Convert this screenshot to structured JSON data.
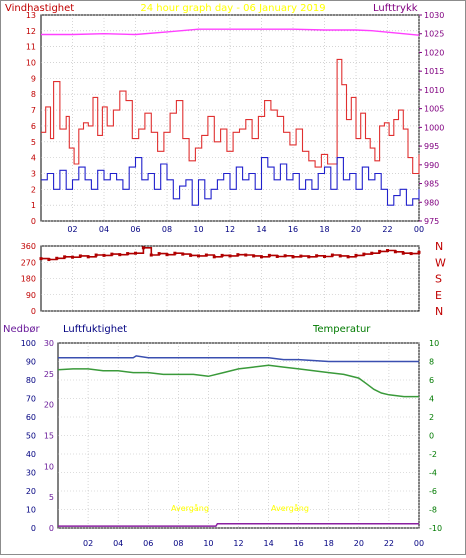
{
  "header": {
    "title": "24 hour graph day - 06 January 2019",
    "title_color": "#ffff00"
  },
  "chart_data": [
    {
      "type": "line",
      "panel": "wind-pressure",
      "ylabel_left": "Vindhastighet",
      "ylabel_right": "Lufttrykk",
      "ylim_left": [
        0,
        13
      ],
      "ylim_right": [
        975,
        1030
      ],
      "xlim": [
        0,
        24
      ],
      "x_tick_labels": [
        "02",
        "04",
        "06",
        "08",
        "10",
        "12",
        "14",
        "16",
        "18",
        "20",
        "22",
        "00"
      ],
      "y_left_tick_labels": [
        "0",
        "1",
        "2",
        "3",
        "4",
        "5",
        "6",
        "7",
        "8",
        "9",
        "10",
        "11",
        "12",
        "13"
      ],
      "y_right_tick_labels": [
        "975",
        "980",
        "985",
        "990",
        "995",
        "1000",
        "1005",
        "1010",
        "1015",
        "1020",
        "1025",
        "1030"
      ],
      "series": [
        {
          "name": "Lufttrykk",
          "axis": "right",
          "color": "#ff40ff",
          "x": [
            0,
            2,
            4,
            6,
            8,
            10,
            12,
            14,
            16,
            18,
            20,
            21,
            22,
            23,
            24
          ],
          "y": [
            1024.8,
            1024.8,
            1025.0,
            1024.8,
            1025.5,
            1026.2,
            1026.2,
            1026.2,
            1026.2,
            1026.0,
            1026.0,
            1025.8,
            1025.4,
            1025.0,
            1024.6
          ]
        },
        {
          "name": "Vindkast",
          "axis": "left",
          "color": "#e03030",
          "x": [
            0,
            0.3,
            0.6,
            0.8,
            1.2,
            1.6,
            1.8,
            2.1,
            2.4,
            2.7,
            3.0,
            3.3,
            3.6,
            3.9,
            4.2,
            4.6,
            5.0,
            5.4,
            5.8,
            6.2,
            6.6,
            7.0,
            7.4,
            7.8,
            8.2,
            8.6,
            9.0,
            9.4,
            9.8,
            10.2,
            10.6,
            11.0,
            11.4,
            11.8,
            12.2,
            12.6,
            13.0,
            13.4,
            13.8,
            14.2,
            14.6,
            15.0,
            15.4,
            15.8,
            16.2,
            16.6,
            17.0,
            17.4,
            17.8,
            18.2,
            18.6,
            18.8,
            19.1,
            19.4,
            19.7,
            20.0,
            20.3,
            20.6,
            20.9,
            21.2,
            21.5,
            21.8,
            22.1,
            22.4,
            22.7,
            23.0,
            23.3,
            23.6,
            24
          ],
          "y": [
            5.6,
            7.2,
            5.2,
            8.8,
            5.8,
            6.6,
            4.6,
            3.6,
            5.8,
            6.2,
            6.0,
            7.8,
            5.4,
            7.2,
            6.0,
            7.0,
            8.2,
            7.6,
            5.2,
            5.8,
            6.8,
            5.6,
            4.4,
            5.6,
            6.8,
            7.6,
            5.2,
            3.8,
            4.6,
            5.4,
            6.6,
            5.0,
            5.8,
            4.4,
            5.6,
            5.8,
            6.4,
            5.2,
            6.6,
            7.6,
            7.0,
            6.6,
            5.6,
            4.8,
            5.8,
            4.4,
            3.8,
            3.4,
            4.2,
            3.6,
            3.6,
            10.2,
            8.6,
            6.4,
            7.8,
            5.2,
            6.8,
            5.2,
            4.6,
            3.8,
            6.0,
            6.2,
            5.4,
            6.4,
            7.0,
            5.8,
            4.0,
            3.0,
            4.2
          ]
        },
        {
          "name": "Vindhastighet",
          "axis": "left",
          "color": "#2020cc",
          "x": [
            0,
            0.4,
            0.8,
            1.2,
            1.6,
            2.0,
            2.4,
            2.8,
            3.2,
            3.6,
            4.0,
            4.4,
            4.8,
            5.2,
            5.6,
            6.0,
            6.4,
            6.8,
            7.2,
            7.6,
            8.0,
            8.4,
            8.8,
            9.2,
            9.6,
            10.0,
            10.4,
            10.8,
            11.2,
            11.6,
            12.0,
            12.4,
            12.8,
            13.2,
            13.6,
            14.0,
            14.4,
            14.8,
            15.2,
            15.6,
            16.0,
            16.4,
            16.8,
            17.2,
            17.6,
            18.0,
            18.4,
            18.8,
            19.2,
            19.6,
            20.0,
            20.4,
            20.8,
            21.2,
            21.6,
            22.0,
            22.4,
            22.8,
            23.2,
            23.6,
            24
          ],
          "y": [
            2.6,
            3.0,
            2.0,
            3.2,
            2.0,
            2.6,
            3.4,
            2.6,
            2.0,
            3.2,
            2.6,
            3.0,
            2.6,
            2.0,
            3.4,
            4.0,
            2.6,
            3.0,
            2.0,
            3.6,
            2.6,
            1.4,
            2.2,
            2.6,
            1.0,
            2.6,
            1.4,
            2.0,
            2.6,
            3.0,
            2.0,
            3.4,
            2.6,
            3.0,
            2.0,
            4.0,
            3.4,
            2.6,
            3.6,
            2.6,
            3.0,
            2.0,
            2.6,
            2.0,
            3.0,
            3.4,
            2.0,
            4.0,
            2.6,
            3.0,
            2.0,
            3.4,
            2.6,
            3.0,
            2.0,
            1.0,
            1.6,
            2.0,
            1.0,
            1.4,
            2.0
          ]
        }
      ]
    },
    {
      "type": "scatter",
      "panel": "wind-direction",
      "ylim": [
        0,
        360
      ],
      "xlim": [
        0,
        24
      ],
      "y_tick_labels": [
        "0",
        "90",
        "180",
        "270",
        "360"
      ],
      "compass_labels": [
        "N",
        "W",
        "S",
        "E",
        "N"
      ],
      "series": [
        {
          "name": "Vindretning",
          "color": "#b00000",
          "x": [
            0,
            0.5,
            1,
            1.5,
            2,
            2.5,
            3,
            3.5,
            4,
            4.5,
            5,
            5.5,
            6,
            6.5,
            7,
            7.5,
            8,
            8.5,
            9,
            9.5,
            10,
            10.5,
            11,
            11.5,
            12,
            12.5,
            13,
            13.5,
            14,
            14.5,
            15,
            15.5,
            16,
            16.5,
            17,
            17.5,
            18,
            18.5,
            19,
            19.5,
            20,
            20.5,
            21,
            21.5,
            22,
            22.5,
            23,
            23.5,
            24
          ],
          "y": [
            290,
            285,
            292,
            300,
            298,
            305,
            300,
            310,
            308,
            315,
            312,
            318,
            320,
            350,
            310,
            318,
            312,
            320,
            315,
            308,
            305,
            310,
            300,
            308,
            305,
            312,
            310,
            305,
            300,
            308,
            302,
            306,
            300,
            304,
            300,
            306,
            302,
            310,
            305,
            300,
            308,
            315,
            320,
            330,
            335,
            328,
            320,
            318,
            325
          ]
        }
      ]
    },
    {
      "type": "line",
      "panel": "humidity-temperature-rain",
      "label_rain": "Nedbør",
      "label_humidity": "Luftfuktighet",
      "label_temperature": "Temperatur",
      "rain_color": "#6a1b9a",
      "humidity_color": "#000080",
      "temperature_color": "#007a00",
      "humidity_ylim": [
        0,
        100
      ],
      "rain_ylim": [
        0,
        30
      ],
      "temperature_ylim": [
        -10,
        10
      ],
      "xlim": [
        0,
        24
      ],
      "x_tick_labels": [
        "02",
        "04",
        "06",
        "08",
        "10",
        "12",
        "14",
        "16",
        "18",
        "20",
        "22",
        "00"
      ],
      "humidity_tick_labels": [
        "0",
        "10",
        "20",
        "30",
        "40",
        "50",
        "60",
        "70",
        "80",
        "90",
        "100"
      ],
      "rain_tick_labels": [
        "0",
        "5",
        "10",
        "15",
        "20",
        "25",
        "30"
      ],
      "temperature_tick_labels": [
        "-10",
        "-8",
        "-6",
        "-4",
        "-2",
        "0",
        "2",
        "4",
        "6",
        "8",
        "10"
      ],
      "annotations": [
        "Avergång",
        "Avergång"
      ],
      "annotation_color": "#ffff00",
      "series": [
        {
          "name": "Luftfuktighet",
          "axis": "humidity",
          "color": "#3a4fb0",
          "x": [
            0,
            4,
            5,
            5.2,
            6,
            10,
            14,
            15,
            16,
            18,
            20,
            21,
            24
          ],
          "y": [
            92,
            92,
            92,
            93,
            92,
            92,
            92,
            91,
            91,
            90,
            90,
            90,
            90
          ]
        },
        {
          "name": "Temperatur",
          "axis": "temperature",
          "color": "#3a9a3a",
          "x": [
            0,
            1,
            2,
            3,
            4,
            5,
            6,
            7,
            8,
            9,
            10,
            11,
            12,
            13,
            14,
            15,
            16,
            17,
            18,
            19,
            20,
            20.5,
            21,
            21.5,
            22,
            23,
            24
          ],
          "y": [
            7.1,
            7.2,
            7.2,
            7.0,
            7.0,
            6.8,
            6.8,
            6.6,
            6.6,
            6.6,
            6.4,
            6.8,
            7.2,
            7.4,
            7.6,
            7.4,
            7.2,
            7.0,
            6.8,
            6.6,
            6.2,
            5.6,
            5.0,
            4.6,
            4.4,
            4.2,
            4.2
          ]
        },
        {
          "name": "Nedbør",
          "axis": "rain",
          "color": "#8a1fa0",
          "x": [
            0,
            10.5,
            10.6,
            24
          ],
          "y": [
            0.3,
            0.3,
            0.7,
            0.7
          ]
        }
      ]
    }
  ]
}
